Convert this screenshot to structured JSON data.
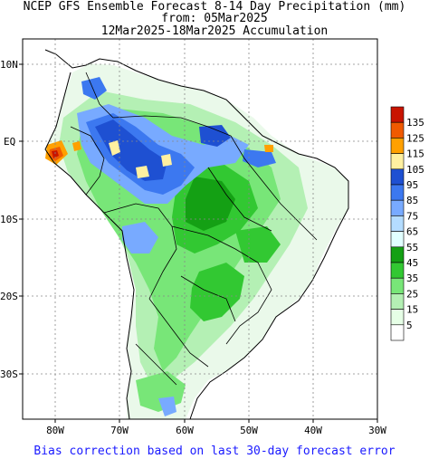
{
  "header": {
    "line1": "NCEP GFS Ensemble Forecast 8-14 Day Precipitation (mm)",
    "line2": "from: 05Mar2025",
    "line3": "12Mar2025-18Mar2025 Accumulation"
  },
  "footer": {
    "text": "Bias correction based on last 30-day forecast error"
  },
  "axes": {
    "lat_labels": [
      "10N",
      "EQ",
      "10S",
      "20S",
      "30S"
    ],
    "lon_labels": [
      "80W",
      "70W",
      "60W",
      "50W",
      "40W",
      "30W"
    ]
  },
  "legend": {
    "bins": [
      {
        "label": "135",
        "color": "#c81400"
      },
      {
        "label": "125",
        "color": "#f05a00"
      },
      {
        "label": "115",
        "color": "#ffa000"
      },
      {
        "label": "105",
        "color": "#fff0a0"
      },
      {
        "label": "95",
        "color": "#1e50d2"
      },
      {
        "label": "85",
        "color": "#3c78f0"
      },
      {
        "label": "75",
        "color": "#78aaff"
      },
      {
        "label": "65",
        "color": "#b4dcff"
      },
      {
        "label": "55",
        "color": "#e1ffff"
      },
      {
        "label": "45",
        "color": "#14a014"
      },
      {
        "label": "35",
        "color": "#32c832"
      },
      {
        "label": "25",
        "color": "#78e678"
      },
      {
        "label": "15",
        "color": "#b4f0b4"
      },
      {
        "label": "5",
        "color": "#e6ffe6"
      },
      {
        "label": "",
        "color": "#ffffff"
      }
    ]
  }
}
